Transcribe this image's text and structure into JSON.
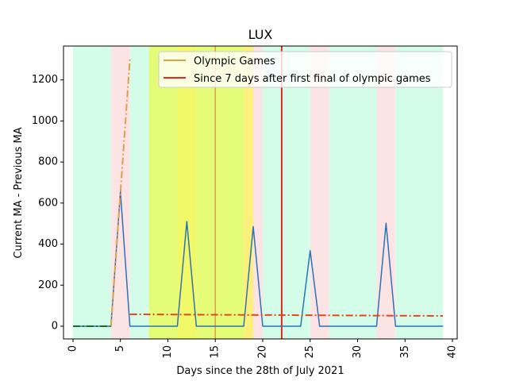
{
  "chart_data": {
    "type": "line",
    "title": "LUX",
    "xlabel": "Days since the 28th of July 2021",
    "ylabel": "Current MA - Previous MA",
    "xlim": [
      -1,
      40.5
    ],
    "ylim": [
      -62,
      1365
    ],
    "xticks": [
      0,
      5,
      10,
      15,
      20,
      25,
      30,
      35,
      40
    ],
    "yticks": [
      0,
      200,
      400,
      600,
      800,
      1000,
      1200
    ],
    "grid": false,
    "legend_position": "top-right",
    "legend": [
      {
        "label": "Olympic Games",
        "color": "#dda04a"
      },
      {
        "label": "Since 7 days after first final of olympic games",
        "color": "#e8251e"
      }
    ],
    "background_bands": [
      {
        "x0": 0,
        "x1": 4,
        "color": "#d3fde8"
      },
      {
        "x0": 4,
        "x1": 6,
        "color": "#fde4e4"
      },
      {
        "x0": 6,
        "x1": 8,
        "color": "#d3fde8"
      },
      {
        "x0": 8,
        "x1": 11,
        "color": "#e5fc79"
      },
      {
        "x0": 11,
        "x1": 13,
        "color": "#f2f968"
      },
      {
        "x0": 13,
        "x1": 18,
        "color": "#e5fc79"
      },
      {
        "x0": 18,
        "x1": 19,
        "color": "#fdf07a"
      },
      {
        "x0": 19,
        "x1": 20,
        "color": "#fde4e4"
      },
      {
        "x0": 20,
        "x1": 25,
        "color": "#d3fde8"
      },
      {
        "x0": 25,
        "x1": 27,
        "color": "#fde4e4"
      },
      {
        "x0": 27,
        "x1": 32,
        "color": "#d3fde8"
      },
      {
        "x0": 32,
        "x1": 34,
        "color": "#fde4e4"
      },
      {
        "x0": 34,
        "x1": 39,
        "color": "#d3fde8"
      }
    ],
    "vertical_lines": [
      {
        "x": 15,
        "color": "#dda04a",
        "name": "Olympic Games"
      },
      {
        "x": 22,
        "color": "#e8251e",
        "name": "Since 7 days after first final of olympic games"
      }
    ],
    "series": [
      {
        "style": "solid",
        "color": "#2b72b8",
        "x": [
          0,
          1,
          2,
          3,
          4,
          5,
          6,
          7,
          8,
          9,
          10,
          11,
          12,
          13,
          14,
          15,
          16,
          17,
          18,
          19,
          20,
          21,
          22,
          23,
          24,
          25,
          26,
          27,
          28,
          29,
          30,
          31,
          32,
          33,
          34,
          35,
          36,
          37,
          38,
          39
        ],
        "y": [
          0,
          0,
          0,
          0,
          0,
          655,
          0,
          0,
          0,
          0,
          0,
          0,
          510,
          0,
          0,
          0,
          0,
          0,
          0,
          485,
          0,
          0,
          0,
          0,
          0,
          368,
          0,
          0,
          0,
          0,
          0,
          0,
          0,
          502,
          0,
          0,
          0,
          0,
          0,
          0
        ]
      },
      {
        "style": "dashdot",
        "color": "#1d6a2a",
        "x": [
          0,
          4
        ],
        "y": [
          0,
          0
        ]
      },
      {
        "style": "dashdot",
        "color": "#dda04a",
        "x": [
          4,
          6
        ],
        "y": [
          0,
          1300
        ]
      },
      {
        "style": "dashdot",
        "color": "#e8451e",
        "x": [
          6,
          39
        ],
        "y": [
          58,
          50
        ]
      }
    ]
  }
}
